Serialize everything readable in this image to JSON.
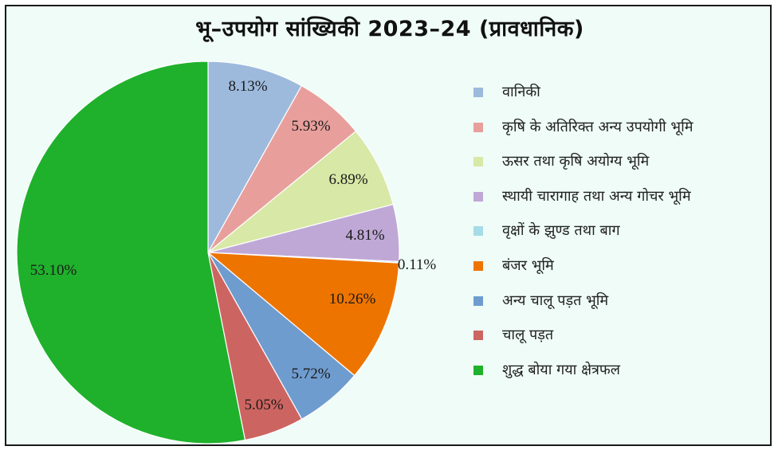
{
  "chart_data": {
    "type": "pie",
    "title": "भू–उपयोग सांख्यिकी 2023–24 (प्रावधानिक)",
    "legend_position": "right",
    "start_angle_deg": 0,
    "direction": "clockwise",
    "slices": [
      {
        "label": "वानिकी",
        "value": 8.13,
        "value_label": "8.13%",
        "color": "#9dbadd"
      },
      {
        "label": "कृषि के अतिरिक्त अन्य उपयोगी भूमि",
        "value": 5.93,
        "value_label": "5.93%",
        "color": "#e89f9c"
      },
      {
        "label": "ऊसर तथा कृषि अयोग्य भूमि",
        "value": 6.89,
        "value_label": "6.89%",
        "color": "#d8e8a6"
      },
      {
        "label": "स्थायी चारागाह तथा अन्य गोचर भूमि",
        "value": 4.81,
        "value_label": "4.81%",
        "color": "#bfa8d6"
      },
      {
        "label": "वृक्षों के झुण्ड तथा बाग",
        "value": 0.11,
        "value_label": "0.11%",
        "color": "#a5dce7"
      },
      {
        "label": "बंजर भूमि",
        "value": 10.26,
        "value_label": "10.26%",
        "color": "#ee7400"
      },
      {
        "label": "अन्य चालू पड़त भूमि",
        "value": 5.72,
        "value_label": "5.72%",
        "color": "#6f9ccf"
      },
      {
        "label": "चालू पड़त",
        "value": 5.05,
        "value_label": "5.05%",
        "color": "#cc6561"
      },
      {
        "label": "शुद्ध बोया गया क्षेत्रफल",
        "value": 53.1,
        "value_label": "53.10%",
        "color": "#1fb12c"
      }
    ]
  }
}
